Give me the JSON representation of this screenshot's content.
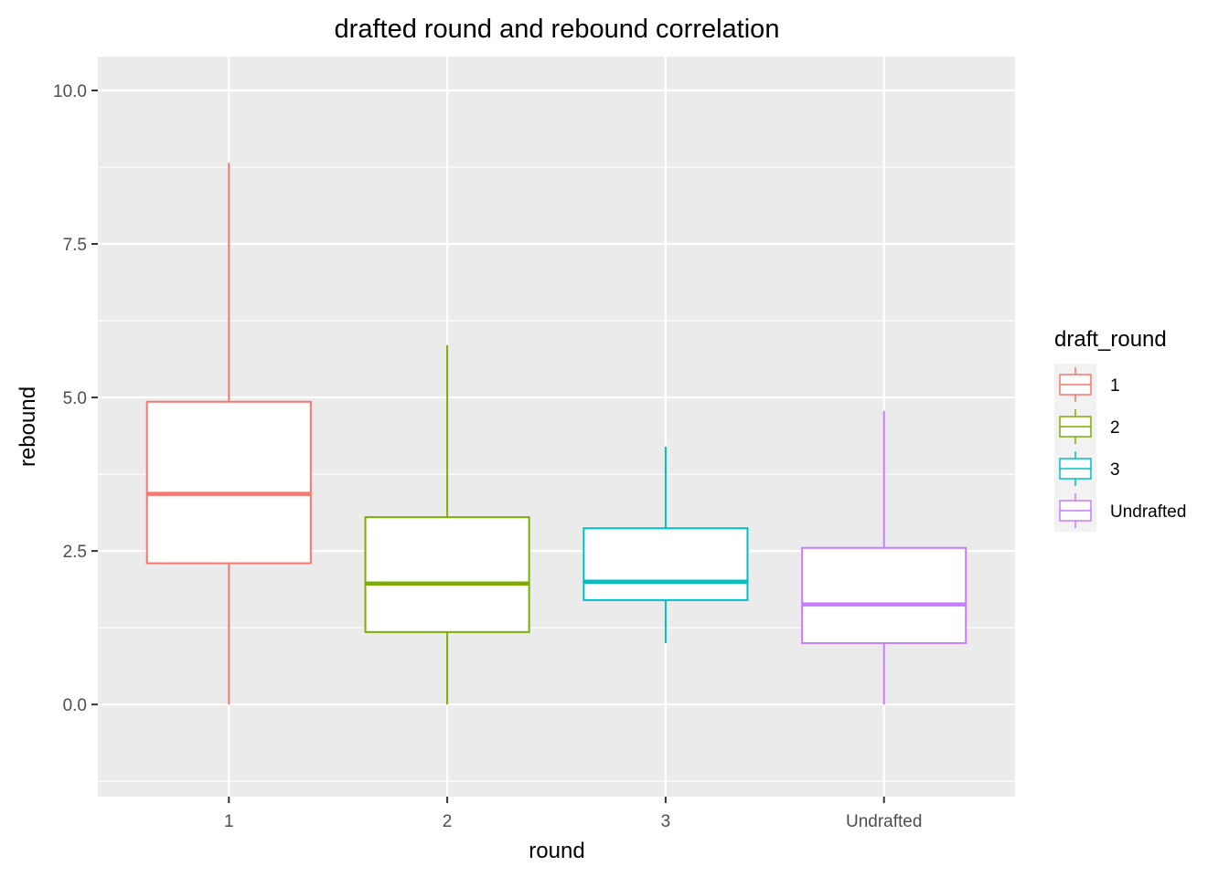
{
  "chart_data": {
    "type": "boxplot",
    "title": "drafted round and rebound correlation",
    "xlabel": "round",
    "ylabel": "rebound",
    "categories": [
      "1",
      "2",
      "3",
      "Undrafted"
    ],
    "ylim": [
      -1.5,
      10.55
    ],
    "yticks": [
      0.0,
      2.5,
      5.0,
      7.5,
      10.0
    ],
    "ytick_labels": [
      "0.0",
      "2.5",
      "5.0",
      "7.5",
      "10.0"
    ],
    "grid": true,
    "legend": {
      "title": "draft_round",
      "position": "right",
      "entries": [
        "1",
        "2",
        "3",
        "Undrafted"
      ]
    },
    "series": [
      {
        "name": "1",
        "color": "#F8766D",
        "min": 0.0,
        "q1": 2.3,
        "median": 3.43,
        "q3": 4.93,
        "max": 8.82
      },
      {
        "name": "2",
        "color": "#7CAE00",
        "min": 0.0,
        "q1": 1.18,
        "median": 1.97,
        "q3": 3.05,
        "max": 5.85
      },
      {
        "name": "3",
        "color": "#00BFC4",
        "min": 1.0,
        "q1": 1.7,
        "median": 2.0,
        "q3": 2.87,
        "max": 4.2
      },
      {
        "name": "Undrafted",
        "color": "#C77CFF",
        "min": 0.0,
        "q1": 1.0,
        "median": 1.63,
        "q3": 2.55,
        "max": 4.78
      }
    ]
  }
}
